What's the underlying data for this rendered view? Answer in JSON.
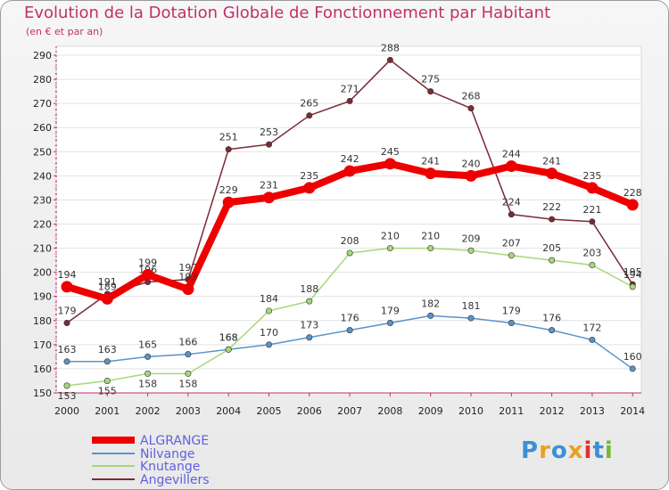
{
  "title": "Evolution de la Dotation Globale de Fonctionnement par Habitant",
  "subtitle": "(en € et par an)",
  "logo": "Proxiti",
  "chart_data": {
    "type": "line",
    "title": "Evolution de la Dotation Globale de Fonctionnement par Habitant",
    "subtitle": "(en € et par an)",
    "xlabel": "",
    "ylabel": "",
    "categories": [
      "2000",
      "2001",
      "2002",
      "2003",
      "2004",
      "2005",
      "2006",
      "2007",
      "2008",
      "2009",
      "2010",
      "2011",
      "2012",
      "2013",
      "2014"
    ],
    "ylim": [
      150,
      290
    ],
    "yticks": [
      150,
      160,
      170,
      180,
      190,
      200,
      210,
      220,
      230,
      240,
      250,
      260,
      270,
      280,
      290
    ],
    "grid": true,
    "legend_position": "bottom-left",
    "series": [
      {
        "name": "Angevillers",
        "color": "#7b2a35",
        "values": [
          179,
          191,
          196,
          197,
          251,
          253,
          265,
          271,
          288,
          275,
          268,
          224,
          222,
          221,
          195
        ]
      },
      {
        "name": "Nilvange",
        "color": "#5a93c9",
        "values": [
          163,
          163,
          165,
          166,
          168,
          170,
          173,
          176,
          179,
          182,
          181,
          179,
          176,
          172,
          160
        ]
      },
      {
        "name": "Knutange",
        "color": "#a6d87a",
        "values": [
          153,
          155,
          158,
          158,
          168,
          184,
          188,
          208,
          210,
          210,
          209,
          207,
          205,
          203,
          194
        ]
      },
      {
        "name": "ALGRANGE",
        "color": "#ee0000",
        "values": [
          194,
          189,
          199,
          193,
          229,
          231,
          235,
          242,
          245,
          241,
          240,
          244,
          241,
          235,
          228
        ]
      }
    ],
    "legend_order": [
      "ALGRANGE",
      "Nilvange",
      "Knutange",
      "Angevillers"
    ]
  }
}
